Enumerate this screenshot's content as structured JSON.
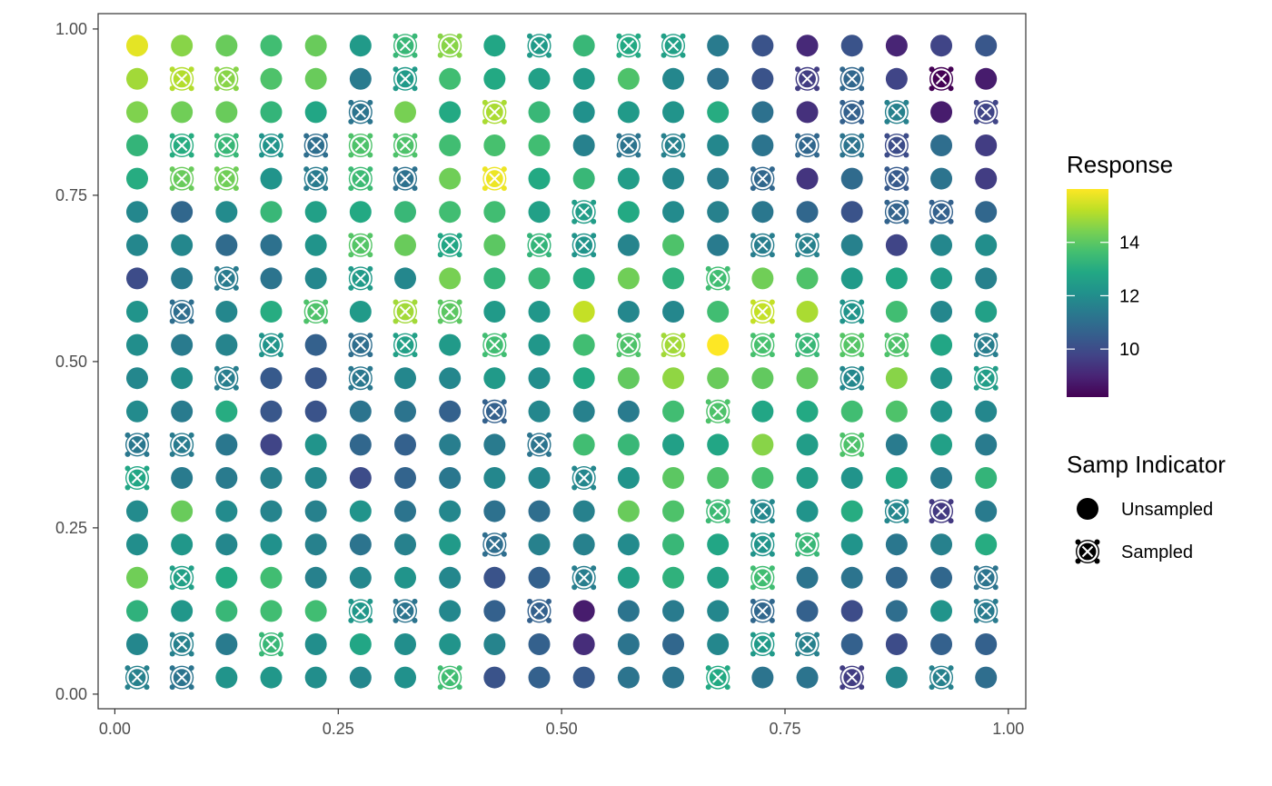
{
  "chart_data": {
    "type": "scatter",
    "title": "",
    "xlabel": "",
    "ylabel": "",
    "xlim": [
      0,
      1
    ],
    "ylim": [
      0,
      1
    ],
    "x_ticks": [
      "0.00",
      "0.25",
      "0.50",
      "0.75",
      "1.00"
    ],
    "y_ticks": [
      "0.00",
      "0.25",
      "0.50",
      "0.75",
      "1.00"
    ],
    "grid": false,
    "grid_x": [
      0.025,
      0.075,
      0.125,
      0.175,
      0.225,
      0.275,
      0.325,
      0.375,
      0.425,
      0.475,
      0.525,
      0.575,
      0.625,
      0.675,
      0.725,
      0.775,
      0.825,
      0.875,
      0.925,
      0.975
    ],
    "grid_y_top_to_bottom": [
      0.975,
      0.925,
      0.875,
      0.825,
      0.775,
      0.725,
      0.675,
      0.625,
      0.575,
      0.525,
      0.475,
      0.425,
      0.375,
      0.325,
      0.275,
      0.225,
      0.175,
      0.125,
      0.075,
      0.025
    ],
    "response_rows_top_to_bottom": [
      [
        15.7,
        14.6,
        14.2,
        13.6,
        14.2,
        12.4,
        13.4,
        14.6,
        12.8,
        12.4,
        13.4,
        12.9,
        12.6,
        11.4,
        10.2,
        9.1,
        10.2,
        9.0,
        9.8,
        10.3
      ],
      [
        14.9,
        15.1,
        14.6,
        13.8,
        14.2,
        11.4,
        12.4,
        13.6,
        12.9,
        12.6,
        12.4,
        13.8,
        11.8,
        11.1,
        10.2,
        9.6,
        10.8,
        9.8,
        8.2,
        8.8
      ],
      [
        14.5,
        14.3,
        14.2,
        13.3,
        12.8,
        11.2,
        14.4,
        12.9,
        15.0,
        13.4,
        12.1,
        12.4,
        12.2,
        13.0,
        11.1,
        9.3,
        10.6,
        11.6,
        8.8,
        9.8
      ],
      [
        13.3,
        13.0,
        13.4,
        12.2,
        11.0,
        13.8,
        13.8,
        13.6,
        13.7,
        13.6,
        11.6,
        11.2,
        11.6,
        11.8,
        11.2,
        10.8,
        11.2,
        10.0,
        11.0,
        9.6
      ],
      [
        13.0,
        14.2,
        14.3,
        12.2,
        11.4,
        13.5,
        11.1,
        14.3,
        15.8,
        12.9,
        13.4,
        12.5,
        11.8,
        11.5,
        10.8,
        9.4,
        10.9,
        10.4,
        11.2,
        9.6
      ],
      [
        11.8,
        10.8,
        11.9,
        13.4,
        12.6,
        12.9,
        13.4,
        13.6,
        13.6,
        12.6,
        12.5,
        12.9,
        11.9,
        11.6,
        11.3,
        10.8,
        10.2,
        10.7,
        10.6,
        10.8
      ],
      [
        11.8,
        11.8,
        10.9,
        11.1,
        12.2,
        13.9,
        14.2,
        12.8,
        14.0,
        13.3,
        12.2,
        11.7,
        13.8,
        11.4,
        11.5,
        11.6,
        11.6,
        9.8,
        11.8,
        12.0
      ],
      [
        10.0,
        11.4,
        11.4,
        11.2,
        11.8,
        12.4,
        11.8,
        14.4,
        13.3,
        13.4,
        13.0,
        14.3,
        13.2,
        13.6,
        14.3,
        13.8,
        12.4,
        12.8,
        12.4,
        11.6
      ],
      [
        12.2,
        11.0,
        11.8,
        13.0,
        13.8,
        12.4,
        14.9,
        14.0,
        12.4,
        12.3,
        15.3,
        11.8,
        11.8,
        13.6,
        15.3,
        15.0,
        12.2,
        13.6,
        11.8,
        12.6
      ],
      [
        12.0,
        11.4,
        11.7,
        12.2,
        10.6,
        11.0,
        12.6,
        12.4,
        13.6,
        12.3,
        13.6,
        13.8,
        14.9,
        16.0,
        13.7,
        13.4,
        13.9,
        13.8,
        12.8,
        11.5
      ],
      [
        11.8,
        12.0,
        11.5,
        10.4,
        10.3,
        11.3,
        11.8,
        11.8,
        12.4,
        12.0,
        12.9,
        14.1,
        14.7,
        14.2,
        14.1,
        14.1,
        11.8,
        14.6,
        12.2,
        12.5
      ],
      [
        11.9,
        11.4,
        13.0,
        10.3,
        10.2,
        11.2,
        11.2,
        10.6,
        10.6,
        11.8,
        11.6,
        11.4,
        13.6,
        13.8,
        12.8,
        12.9,
        13.6,
        13.8,
        12.2,
        11.8
      ],
      [
        11.3,
        11.4,
        11.3,
        9.8,
        12.2,
        10.8,
        10.6,
        11.5,
        11.4,
        11.2,
        13.6,
        13.4,
        12.6,
        12.8,
        14.6,
        12.5,
        13.8,
        11.4,
        12.6,
        11.4
      ],
      [
        12.8,
        11.4,
        11.4,
        11.6,
        11.8,
        10.0,
        10.7,
        11.3,
        11.8,
        11.8,
        11.8,
        12.2,
        14.0,
        13.8,
        13.7,
        12.5,
        12.2,
        12.9,
        11.4,
        13.3
      ],
      [
        11.9,
        14.2,
        11.9,
        11.7,
        11.6,
        12.2,
        11.2,
        11.8,
        11.1,
        11.0,
        11.6,
        14.2,
        13.8,
        13.5,
        11.8,
        12.2,
        13.0,
        11.8,
        9.5,
        11.4
      ],
      [
        12.0,
        12.3,
        11.8,
        12.1,
        11.6,
        11.2,
        11.6,
        12.4,
        11.0,
        11.6,
        11.6,
        11.9,
        13.4,
        12.8,
        12.2,
        13.4,
        12.2,
        11.3,
        11.6,
        13.0
      ],
      [
        14.3,
        12.6,
        12.9,
        13.6,
        11.6,
        11.8,
        12.2,
        11.8,
        10.2,
        10.6,
        11.5,
        12.6,
        13.2,
        12.6,
        13.6,
        11.2,
        11.2,
        10.8,
        10.8,
        11.2
      ],
      [
        13.2,
        12.3,
        13.4,
        13.6,
        13.6,
        12.3,
        11.2,
        11.8,
        10.6,
        10.6,
        8.8,
        11.2,
        11.4,
        11.8,
        10.8,
        10.6,
        10.0,
        11.0,
        12.2,
        11.4
      ],
      [
        11.8,
        11.6,
        11.4,
        13.4,
        12.0,
        12.8,
        12.0,
        12.2,
        11.7,
        10.6,
        9.2,
        11.2,
        10.8,
        11.8,
        12.4,
        11.6,
        10.6,
        10.0,
        10.6,
        10.6
      ],
      [
        11.6,
        11.2,
        12.2,
        12.3,
        12.0,
        11.8,
        12.1,
        13.6,
        10.2,
        10.6,
        10.4,
        11.2,
        11.2,
        12.9,
        11.2,
        11.2,
        9.6,
        11.8,
        11.6,
        11.0
      ]
    ],
    "sampled_rows_top_to_bottom": [
      "00000011010110000000",
      "01100010000000011010",
      "00000100100000001101",
      "01111110000110011100",
      "01101110100000100100",
      "00000000001000000110",
      "00000101011000110000",
      "00100100000001000000",
      "01001011000000101000",
      "00010110100110111101",
      "00100100000000001001",
      "00000000100001000000",
      "11000000010000001000",
      "10000000001000000000",
      "00000000000001100110",
      "00000000100000110000",
      "01000000001000100001",
      "00000110010000100001",
      "01010000000000110000",
      "11000001000001001010"
    ],
    "legend": {
      "color_title": "Response",
      "color_scale": "viridis",
      "color_range": [
        8.2,
        16.0
      ],
      "color_ticks": [
        "10",
        "12",
        "14"
      ],
      "color_tick_values": [
        10,
        12,
        14
      ],
      "shape_title": "Samp Indicator",
      "shape_entries": [
        "Unsampled",
        "Sampled"
      ],
      "placement": "right"
    }
  }
}
